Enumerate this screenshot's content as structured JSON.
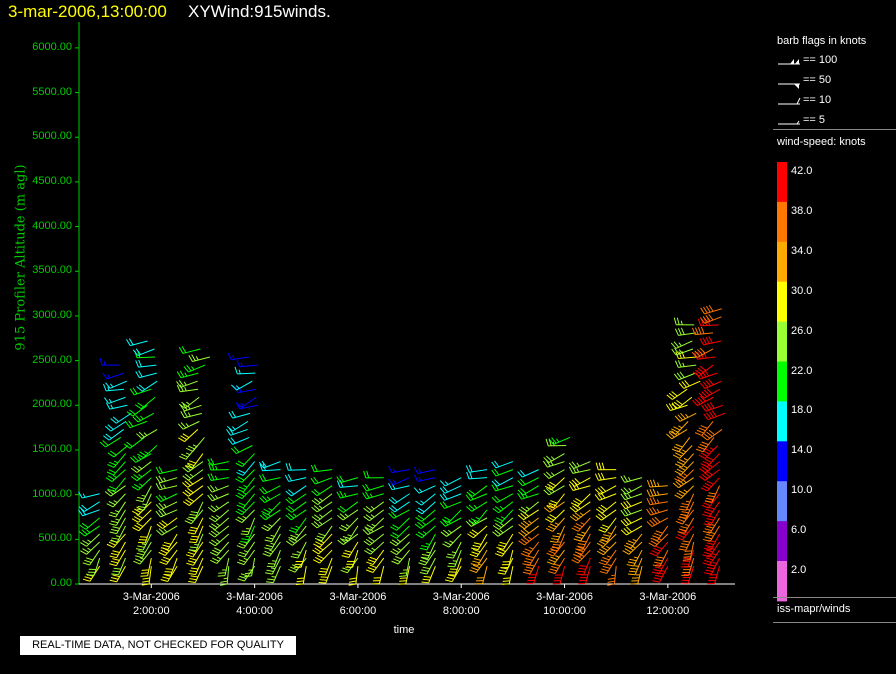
{
  "header": {
    "datetime": "3-mar-2006,13:00:00",
    "title": "XYWind:915winds."
  },
  "footer": {
    "notice": "REAL-TIME DATA, NOT CHECKED FOR QUALITY",
    "source": "iss-mapr/winds"
  },
  "legend": {
    "barb_title": "barb flags in knots",
    "barb_items": [
      "== 100",
      "== 50",
      "== 10",
      "== 5"
    ],
    "colorbar_title": "wind-speed: knots",
    "colorbar_labels": [
      "42.0",
      "38.0",
      "34.0",
      "30.0",
      "26.0",
      "22.0",
      "18.0",
      "14.0",
      "10.0",
      "6.0",
      "2.0"
    ],
    "colorbar_colors": [
      "#ff0000",
      "#ff7700",
      "#ffaa00",
      "#ffff00",
      "#99ff33",
      "#00ff00",
      "#00ffff",
      "#0000ff",
      "#6688ff",
      "#8800cc",
      "#ee66dd"
    ]
  },
  "chart_data": {
    "type": "wind-barb",
    "ylabel": "915 Profiler Altitude (m agl)",
    "xlabel": "time",
    "ylim": [
      0,
      6200
    ],
    "y_ticks": [
      "0.00",
      "500.00",
      "1000.00",
      "1500.00",
      "2000.00",
      "2500.00",
      "3000.00",
      "3500.00",
      "4000.00",
      "4500.00",
      "5000.00",
      "5500.00",
      "6000.00"
    ],
    "x_ticks": [
      {
        "date": "3-Mar-2006",
        "time": "2:00:00"
      },
      {
        "date": "3-Mar-2006",
        "time": "4:00:00"
      },
      {
        "date": "3-Mar-2006",
        "time": "6:00:00"
      },
      {
        "date": "3-Mar-2006",
        "time": "8:00:00"
      },
      {
        "date": "3-Mar-2006",
        "time": "10:00:00"
      },
      {
        "date": "3-Mar-2006",
        "time": "12:00:00"
      }
    ],
    "xlim_hours": [
      0.6,
      13.3
    ],
    "profiles": [
      {
        "time": 1.0,
        "top": 1050,
        "low_speed": 30,
        "high_speed": 16
      },
      {
        "time": 1.5,
        "top": 2500,
        "low_speed": 30,
        "high_speed": 14
      },
      {
        "time": 2.0,
        "top": 2800,
        "low_speed": 30,
        "high_speed": 18
      },
      {
        "time": 2.5,
        "top": 1300,
        "low_speed": 32,
        "high_speed": 22
      },
      {
        "time": 3.0,
        "top": 2700,
        "low_speed": 30,
        "high_speed": 24
      },
      {
        "time": 3.5,
        "top": 1400,
        "low_speed": 28,
        "high_speed": 22
      },
      {
        "time": 4.0,
        "top": 2600,
        "low_speed": 26,
        "high_speed": 14
      },
      {
        "time": 4.5,
        "top": 1400,
        "low_speed": 28,
        "high_speed": 18
      },
      {
        "time": 5.0,
        "top": 1300,
        "low_speed": 30,
        "high_speed": 18
      },
      {
        "time": 5.5,
        "top": 1300,
        "low_speed": 30,
        "high_speed": 22
      },
      {
        "time": 6.0,
        "top": 1200,
        "low_speed": 30,
        "high_speed": 20
      },
      {
        "time": 6.5,
        "top": 1200,
        "low_speed": 30,
        "high_speed": 20
      },
      {
        "time": 7.0,
        "top": 1300,
        "low_speed": 30,
        "high_speed": 14
      },
      {
        "time": 7.5,
        "top": 1300,
        "low_speed": 30,
        "high_speed": 14
      },
      {
        "time": 8.0,
        "top": 1250,
        "low_speed": 32,
        "high_speed": 14
      },
      {
        "time": 8.5,
        "top": 1350,
        "low_speed": 34,
        "high_speed": 16
      },
      {
        "time": 9.0,
        "top": 1450,
        "low_speed": 30,
        "high_speed": 18
      },
      {
        "time": 9.5,
        "top": 1350,
        "low_speed": 42,
        "high_speed": 18
      },
      {
        "time": 10.0,
        "top": 1700,
        "low_speed": 40,
        "high_speed": 22
      },
      {
        "time": 10.5,
        "top": 1400,
        "low_speed": 42,
        "high_speed": 26
      },
      {
        "time": 11.0,
        "top": 1300,
        "low_speed": 36,
        "high_speed": 30
      },
      {
        "time": 11.5,
        "top": 1250,
        "low_speed": 36,
        "high_speed": 24
      },
      {
        "time": 12.0,
        "top": 1100,
        "low_speed": 42,
        "high_speed": 34
      },
      {
        "time": 12.5,
        "top": 2900,
        "low_speed": 42,
        "high_speed": 26
      },
      {
        "time": 13.0,
        "top": 3100,
        "low_speed": 42,
        "high_speed": 40
      }
    ]
  }
}
